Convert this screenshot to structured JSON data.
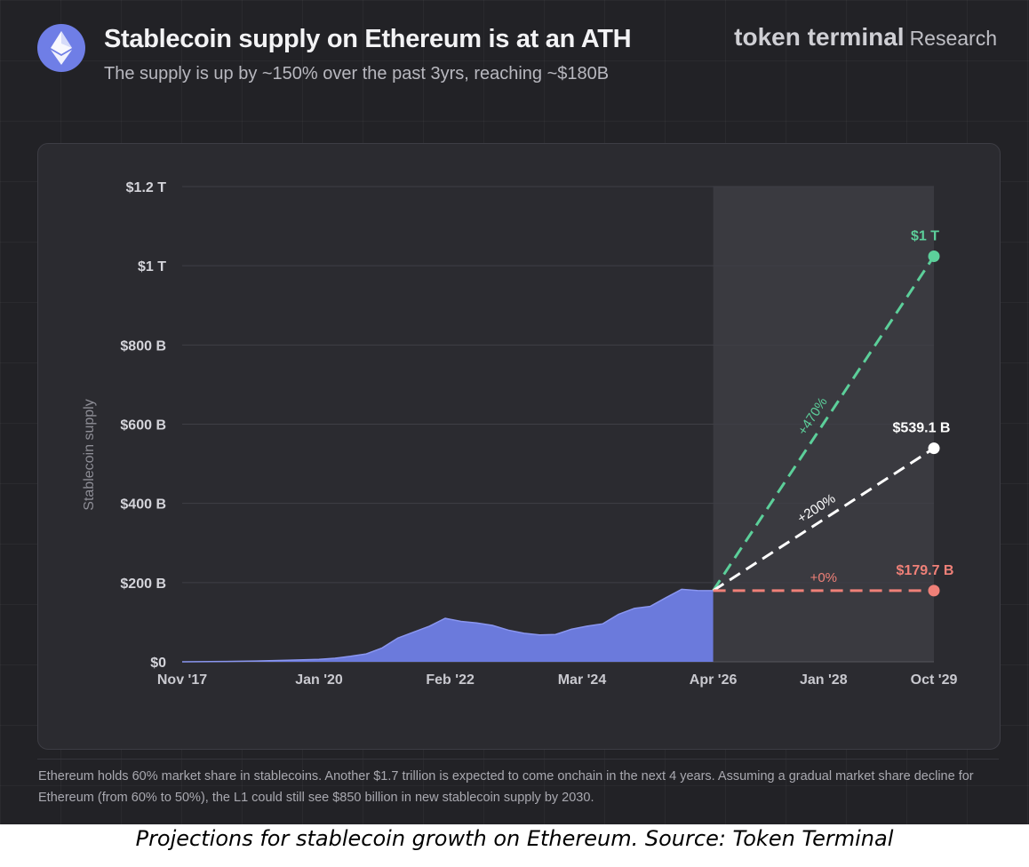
{
  "header": {
    "title": "Stablecoin supply on Ethereum is at an ATH",
    "subtitle": "The supply is up by ~150% over the past 3yrs, reaching ~$180B",
    "brand_name": "token terminal",
    "brand_suffix": "Research",
    "logo_icon": "ethereum-icon"
  },
  "footnote": "Ethereum holds 60% market share in stablecoins. Another $1.7 trillion is expected to come onchain in the next 4 years. Assuming a gradual market share decline for Ethereum (from 60% to 50%), the L1 could still see $850 billion in new stablecoin supply by 2030.",
  "caption": "Projections for stablecoin growth on Ethereum. Source: Token Terminal",
  "colors": {
    "history": "#6f7ee6",
    "projection_bull": "#5ccf9a",
    "projection_base": "#ffffff",
    "projection_flat": "#ef8078",
    "projection_shade": "#3a3a40"
  },
  "chart_data": {
    "type": "area",
    "ylabel": "Stablecoin supply",
    "xlabel": "",
    "x_ticks": [
      "Nov '17",
      "Jan '20",
      "Feb '22",
      "Mar '24",
      "Apr '26",
      "Jan '28",
      "Oct '29"
    ],
    "x_tick_values": [
      2017.83,
      2020.0,
      2022.08,
      2024.17,
      2026.25,
      2028.0,
      2029.75
    ],
    "y_ticks": [
      "$0",
      "$200 B",
      "$400 B",
      "$600 B",
      "$800 B",
      "$1 T",
      "$1.2 T"
    ],
    "y_tick_values": [
      0,
      200,
      400,
      600,
      800,
      1000,
      1200
    ],
    "ylim": [
      0,
      1200
    ],
    "xlim": [
      2017.83,
      2029.75
    ],
    "unit": "B USD",
    "grid": true,
    "projection_start_x": 2026.25,
    "series": [
      {
        "values": [
          [
            2017.83,
            0
          ],
          [
            2018.5,
            1
          ],
          [
            2019.0,
            2
          ],
          [
            2019.5,
            4
          ],
          [
            2020.0,
            6
          ],
          [
            2020.25,
            9
          ],
          [
            2020.5,
            14
          ],
          [
            2020.75,
            20
          ],
          [
            2021.0,
            35
          ],
          [
            2021.25,
            60
          ],
          [
            2021.5,
            75
          ],
          [
            2021.75,
            90
          ],
          [
            2022.0,
            110
          ],
          [
            2022.25,
            102
          ],
          [
            2022.5,
            98
          ],
          [
            2022.75,
            92
          ],
          [
            2023.0,
            80
          ],
          [
            2023.25,
            72
          ],
          [
            2023.5,
            68
          ],
          [
            2023.75,
            69
          ],
          [
            2024.0,
            82
          ],
          [
            2024.25,
            90
          ],
          [
            2024.5,
            96
          ],
          [
            2024.75,
            120
          ],
          [
            2025.0,
            135
          ],
          [
            2025.25,
            140
          ],
          [
            2025.5,
            162
          ],
          [
            2025.75,
            183
          ],
          [
            2026.0,
            180
          ],
          [
            2026.25,
            179.7
          ]
        ]
      },
      {
        "values": [
          [
            2026.25,
            179.7
          ],
          [
            2029.75,
            1024
          ]
        ],
        "end_label": "$1 T",
        "growth_label": "+470%"
      },
      {
        "values": [
          [
            2026.25,
            179.7
          ],
          [
            2029.75,
            539.1
          ]
        ],
        "end_label": "$539.1 B",
        "growth_label": "+200%"
      },
      {
        "values": [
          [
            2026.25,
            179.7
          ],
          [
            2029.75,
            179.7
          ]
        ],
        "end_label": "$179.7 B",
        "growth_label": "+0%"
      }
    ]
  }
}
